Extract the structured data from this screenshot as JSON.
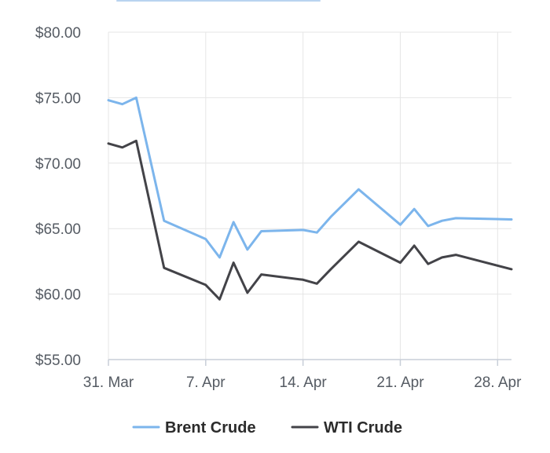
{
  "chart_data": {
    "type": "line",
    "title": "",
    "xlabel": "",
    "ylabel": "",
    "ylim": [
      55,
      80
    ],
    "y_ticks": [
      55,
      60,
      65,
      70,
      75,
      80
    ],
    "y_tick_labels": [
      "$55.00",
      "$60.00",
      "$65.00",
      "$70.00",
      "$75.00",
      "$80.00"
    ],
    "x_range": [
      "2025-03-31",
      "2025-04-29"
    ],
    "x_ticks": [
      "2025-03-31",
      "2025-04-07",
      "2025-04-14",
      "2025-04-21",
      "2025-04-28"
    ],
    "x_tick_labels": [
      "31. Mar",
      "7. Apr",
      "14. Apr",
      "21. Apr",
      "28. Apr"
    ],
    "grid": true,
    "legend_position": "bottom",
    "series": [
      {
        "name": "Brent Crude",
        "color": "#7cb5ec",
        "x": [
          "2025-03-31",
          "2025-04-01",
          "2025-04-02",
          "2025-04-04",
          "2025-04-07",
          "2025-04-08",
          "2025-04-09",
          "2025-04-10",
          "2025-04-11",
          "2025-04-14",
          "2025-04-15",
          "2025-04-16",
          "2025-04-18",
          "2025-04-21",
          "2025-04-22",
          "2025-04-23",
          "2025-04-24",
          "2025-04-25",
          "2025-04-29"
        ],
        "values": [
          74.8,
          74.5,
          75.0,
          65.6,
          64.2,
          62.8,
          65.5,
          63.4,
          64.8,
          64.9,
          64.7,
          65.9,
          68.0,
          65.3,
          66.5,
          65.2,
          65.6,
          65.8,
          65.7
        ]
      },
      {
        "name": "WTI Crude",
        "color": "#434348",
        "x": [
          "2025-03-31",
          "2025-04-01",
          "2025-04-02",
          "2025-04-04",
          "2025-04-07",
          "2025-04-08",
          "2025-04-09",
          "2025-04-10",
          "2025-04-11",
          "2025-04-14",
          "2025-04-15",
          "2025-04-16",
          "2025-04-18",
          "2025-04-21",
          "2025-04-22",
          "2025-04-23",
          "2025-04-24",
          "2025-04-25",
          "2025-04-29"
        ],
        "values": [
          71.5,
          71.2,
          71.7,
          62.0,
          60.7,
          59.6,
          62.4,
          60.1,
          61.5,
          61.1,
          60.8,
          61.9,
          64.0,
          62.4,
          63.7,
          62.3,
          62.8,
          63.0,
          61.9
        ]
      }
    ]
  }
}
